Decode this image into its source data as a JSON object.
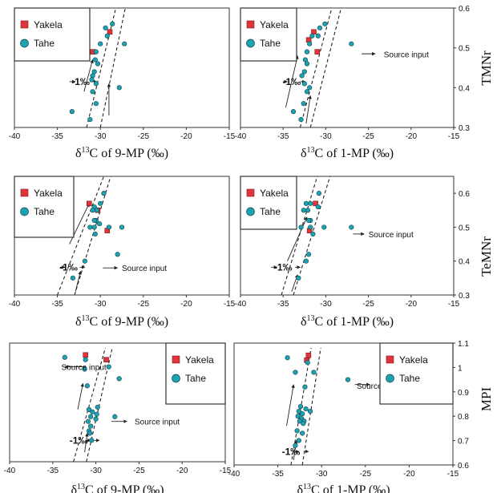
{
  "colors": {
    "yakela": "#e0343c",
    "tahe": "#1aa3b3",
    "outline": "#1b3f45",
    "frame": "#333333",
    "dashed": "#222222"
  },
  "icons": {
    "yakela": "red-square-marker",
    "tahe": "teal-circle-marker"
  },
  "legend": {
    "yakela": "Yakela",
    "tahe": "Tahe"
  },
  "ylabels": {
    "row1": "TMNr",
    "row2": "TeMNr",
    "row3": "MPI"
  },
  "chart_data": [
    {
      "type": "scatter",
      "xlabel_prefix": "δ",
      "xlabel_sup": "13",
      "xlabel_rest": "C of 9-MP (‰)",
      "ylabel": "",
      "xlim": [
        -40,
        -15
      ],
      "ylim": [
        0.3,
        0.6
      ],
      "xticks": [
        "-40",
        "-35",
        "-30",
        "-25",
        "-20",
        "-15"
      ],
      "yticks": [],
      "annotations": [
        {
          "text": "-1‰",
          "x": -32.3,
          "y": 0.415
        }
      ],
      "series": [
        {
          "name": "Yakela",
          "points": [
            [
              -28.9,
              0.54
            ],
            [
              -30.9,
              0.49
            ]
          ]
        },
        {
          "name": "Tahe",
          "points": [
            [
              -28.6,
              0.56
            ],
            [
              -29.4,
              0.55
            ],
            [
              -29.2,
              0.53
            ],
            [
              -27.2,
              0.51
            ],
            [
              -30.0,
              0.51
            ],
            [
              -30.5,
              0.49
            ],
            [
              -30.6,
              0.47
            ],
            [
              -30.3,
              0.46
            ],
            [
              -30.7,
              0.44
            ],
            [
              -30.9,
              0.43
            ],
            [
              -31.0,
              0.42
            ],
            [
              -30.5,
              0.41
            ],
            [
              -27.8,
              0.4
            ],
            [
              -30.9,
              0.39
            ],
            [
              -30.5,
              0.36
            ],
            [
              -33.3,
              0.34
            ],
            [
              -31.2,
              0.32
            ]
          ]
        }
      ]
    },
    {
      "type": "scatter",
      "xlabel_prefix": "δ",
      "xlabel_sup": "13",
      "xlabel_rest": "C of 1-MP (‰)",
      "ylabel": "",
      "xlim": [
        -40,
        -15
      ],
      "ylim": [
        0.3,
        0.6
      ],
      "xticks": [
        "-40",
        "-35",
        "-30",
        "-25",
        "-20",
        "-15"
      ],
      "yticks": [
        "0.6",
        "0.5",
        "0.4",
        "0.3"
      ],
      "annotations": [
        {
          "text": "Source input",
          "x": -23.2,
          "y": 0.484
        },
        {
          "text": "-1‰",
          "x": -34.0,
          "y": 0.415
        }
      ],
      "series": [
        {
          "name": "Yakela",
          "points": [
            [
              -31.4,
              0.54
            ],
            [
              -32.0,
              0.52
            ],
            [
              -31.0,
              0.49
            ]
          ]
        },
        {
          "name": "Tahe",
          "points": [
            [
              -30.1,
              0.56
            ],
            [
              -30.7,
              0.55
            ],
            [
              -30.9,
              0.53
            ],
            [
              -31.6,
              0.53
            ],
            [
              -31.9,
              0.51
            ],
            [
              -27.0,
              0.51
            ],
            [
              -32.2,
              0.49
            ],
            [
              -32.4,
              0.47
            ],
            [
              -32.2,
              0.46
            ],
            [
              -32.5,
              0.44
            ],
            [
              -32.8,
              0.43
            ],
            [
              -32.5,
              0.41
            ],
            [
              -31.9,
              0.4
            ],
            [
              -32.2,
              0.39
            ],
            [
              -32.6,
              0.36
            ],
            [
              -33.8,
              0.34
            ],
            [
              -32.9,
              0.32
            ]
          ]
        }
      ]
    },
    {
      "type": "scatter",
      "xlabel_prefix": "δ",
      "xlabel_sup": "13",
      "xlabel_rest": "C of 9-MP (‰)",
      "ylabel": "",
      "xlim": [
        -40,
        -15
      ],
      "ylim": [
        0.3,
        0.65
      ],
      "xticks": [
        "-40",
        "-35",
        "-30",
        "-25",
        "-20",
        "-15"
      ],
      "yticks": [],
      "annotations": [
        {
          "text": "Source input",
          "x": -27.5,
          "y": 0.38
        },
        {
          "text": "-1‰",
          "x": -33.7,
          "y": 0.382
        }
      ],
      "series": [
        {
          "name": "Yakela",
          "points": [
            [
              -31.3,
              0.57
            ],
            [
              -30.3,
              0.55
            ],
            [
              -29.2,
              0.49
            ]
          ]
        },
        {
          "name": "Tahe",
          "points": [
            [
              -29.6,
              0.6
            ],
            [
              -30.0,
              0.57
            ],
            [
              -30.7,
              0.56
            ],
            [
              -30.4,
              0.55
            ],
            [
              -30.9,
              0.55
            ],
            [
              -30.5,
              0.52
            ],
            [
              -30.7,
              0.52
            ],
            [
              -30.1,
              0.51
            ],
            [
              -31.2,
              0.5
            ],
            [
              -30.7,
              0.5
            ],
            [
              -29.0,
              0.5
            ],
            [
              -27.5,
              0.5
            ],
            [
              -30.6,
              0.48
            ],
            [
              -28.0,
              0.42
            ],
            [
              -31.8,
              0.4
            ],
            [
              -33.2,
              0.35
            ]
          ]
        }
      ]
    },
    {
      "type": "scatter",
      "xlabel_prefix": "δ",
      "xlabel_sup": "13",
      "xlabel_rest": "C of 1-MP (‰)",
      "ylabel": "",
      "xlim": [
        -40,
        -15
      ],
      "ylim": [
        0.3,
        0.65
      ],
      "xticks": [
        "-40",
        "-35",
        "-30",
        "-25",
        "-20",
        "-15"
      ],
      "yticks": [
        "0.6",
        "0.5",
        "0.4",
        "0.3"
      ],
      "annotations": [
        {
          "text": "Source input",
          "x": -25.0,
          "y": 0.48
        },
        {
          "text": "-1‰",
          "x": -35.0,
          "y": 0.382
        }
      ],
      "series": [
        {
          "name": "Yakela",
          "points": [
            [
              -31.2,
              0.57
            ],
            [
              -31.9,
              0.49
            ]
          ]
        },
        {
          "name": "Tahe",
          "points": [
            [
              -30.8,
              0.6
            ],
            [
              -31.8,
              0.57
            ],
            [
              -32.3,
              0.57
            ],
            [
              -30.9,
              0.56
            ],
            [
              -32.1,
              0.55
            ],
            [
              -32.6,
              0.55
            ],
            [
              -31.8,
              0.52
            ],
            [
              -32.0,
              0.52
            ],
            [
              -32.9,
              0.5
            ],
            [
              -31.8,
              0.5
            ],
            [
              -30.2,
              0.5
            ],
            [
              -27.0,
              0.5
            ],
            [
              -31.5,
              0.48
            ],
            [
              -32.0,
              0.42
            ],
            [
              -32.3,
              0.4
            ],
            [
              -33.2,
              0.35
            ]
          ]
        }
      ]
    },
    {
      "type": "scatter",
      "xlabel_prefix": "δ",
      "xlabel_sup": "13",
      "xlabel_rest": "C of 9-MP (‰)",
      "ylabel": "",
      "xlim": [
        -40,
        -15
      ],
      "ylim": [
        0.6,
        1.1
      ],
      "xticks": [
        "-40",
        "-35",
        "-30",
        "-25",
        "-20",
        "-15"
      ],
      "yticks": [],
      "annotations": [
        {
          "text": "Source input",
          "x": -34.0,
          "y": 1.0
        },
        {
          "text": "Source input",
          "x": -25.5,
          "y": 0.77
        },
        {
          "text": "-1‰",
          "x": -32.0,
          "y": 0.69
        }
      ],
      "series": [
        {
          "name": "Yakela",
          "points": [
            [
              -31.2,
              1.05
            ],
            [
              -28.8,
              1.03
            ]
          ]
        },
        {
          "name": "Tahe",
          "points": [
            [
              -33.6,
              1.04
            ],
            [
              -31.2,
              1.03
            ],
            [
              -28.5,
              1.0
            ],
            [
              -31.3,
              0.99
            ],
            [
              -27.3,
              0.95
            ],
            [
              -31.0,
              0.92
            ],
            [
              -29.8,
              0.83
            ],
            [
              -30.4,
              0.81
            ],
            [
              -30.8,
              0.82
            ],
            [
              -29.9,
              0.8
            ],
            [
              -30.6,
              0.79
            ],
            [
              -30.0,
              0.78
            ],
            [
              -30.9,
              0.77
            ],
            [
              -27.8,
              0.79
            ],
            [
              -30.6,
              0.75
            ],
            [
              -30.8,
              0.73
            ],
            [
              -30.7,
              0.72
            ],
            [
              -30.5,
              0.69
            ]
          ]
        }
      ]
    },
    {
      "type": "scatter",
      "xlabel_prefix": "δ",
      "xlabel_sup": "13",
      "xlabel_rest": "C of 1-MP (‰)",
      "ylabel": "",
      "xlim": [
        -40,
        -15
      ],
      "ylim": [
        0.6,
        1.1
      ],
      "xticks": [
        "-40",
        "-35",
        "-30",
        "-25",
        "-20",
        "-15"
      ],
      "yticks": [
        "1.1",
        "1",
        "0.9",
        "0.8",
        "0.7",
        "0.6"
      ],
      "annotations": [
        {
          "text": "Source input",
          "x": -26.0,
          "y": 0.925
        },
        {
          "text": "-1‰",
          "x": -33.5,
          "y": 0.655
        }
      ],
      "series": [
        {
          "name": "Yakela",
          "points": [
            [
              -31.5,
              1.05
            ],
            [
              -31.7,
              1.03
            ]
          ]
        },
        {
          "name": "Tahe",
          "points": [
            [
              -33.9,
              1.04
            ],
            [
              -31.6,
              1.02
            ],
            [
              -30.9,
              0.98
            ],
            [
              -33.0,
              0.98
            ],
            [
              -27.0,
              0.95
            ],
            [
              -31.9,
              0.92
            ],
            [
              -32.4,
              0.84
            ],
            [
              -31.8,
              0.83
            ],
            [
              -32.6,
              0.82
            ],
            [
              -31.3,
              0.82
            ],
            [
              -32.2,
              0.81
            ],
            [
              -32.7,
              0.8
            ],
            [
              -32.3,
              0.79
            ],
            [
              -32.0,
              0.78
            ],
            [
              -32.5,
              0.78
            ],
            [
              -32.1,
              0.77
            ],
            [
              -32.8,
              0.74
            ],
            [
              -32.2,
              0.73
            ],
            [
              -32.6,
              0.7
            ],
            [
              -33.0,
              0.68
            ]
          ]
        }
      ]
    }
  ]
}
